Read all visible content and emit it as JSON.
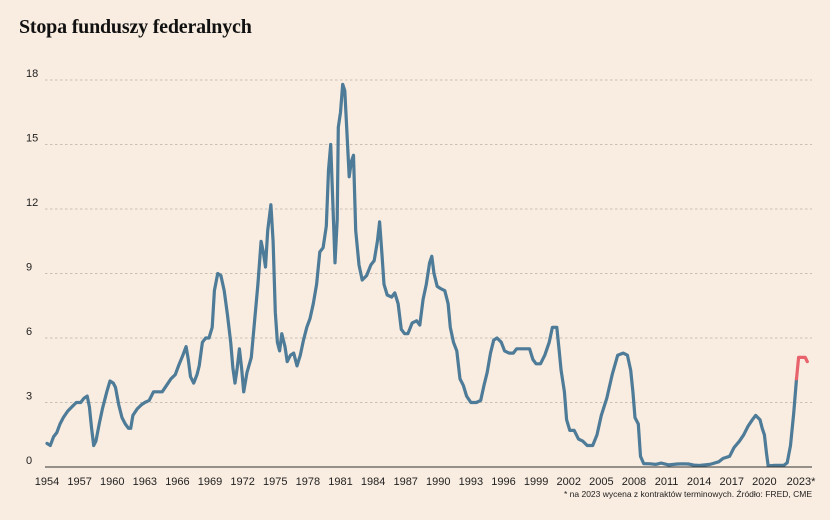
{
  "title": "Stopa funduszy federalnych",
  "footnote": "* na 2023 wycena z kontraktów terminowych. Źródło: FRED, CME",
  "colors": {
    "background": "#f9ece0",
    "historical": "#4d7b98",
    "forecast": "#e8636b",
    "grid": "#b9b0a8",
    "axis": "#333333"
  },
  "chart_data": {
    "type": "line",
    "title": "Stopa funduszy federalnych",
    "xlabel": "",
    "ylabel": "",
    "xlim": [
      1954,
      2024
    ],
    "ylim": [
      0,
      18
    ],
    "y_ticks": [
      0,
      3,
      6,
      9,
      12,
      15,
      18
    ],
    "x_ticks": [
      "1954",
      "1957",
      "1960",
      "1963",
      "1966",
      "1969",
      "1972",
      "1975",
      "1978",
      "1981",
      "1984",
      "1987",
      "1990",
      "1993",
      "1996",
      "1999",
      "2002",
      "2005",
      "2008",
      "2011",
      "2014",
      "2017",
      "2020",
      "2023*"
    ],
    "x_tick_values": [
      1954,
      1957,
      1960,
      1963,
      1966,
      1969,
      1972,
      1975,
      1978,
      1981,
      1984,
      1987,
      1990,
      1993,
      1996,
      1999,
      2002,
      2005,
      2008,
      2011,
      2014,
      2017,
      2020,
      2023
    ],
    "grid": true,
    "series": [
      {
        "role": "historical",
        "points": [
          [
            1954.0,
            1.1
          ],
          [
            1954.3,
            1.0
          ],
          [
            1954.6,
            1.4
          ],
          [
            1954.9,
            1.6
          ],
          [
            1955.2,
            2.0
          ],
          [
            1955.5,
            2.3
          ],
          [
            1955.9,
            2.6
          ],
          [
            1956.3,
            2.8
          ],
          [
            1956.7,
            3.0
          ],
          [
            1957.1,
            3.0
          ],
          [
            1957.4,
            3.2
          ],
          [
            1957.7,
            3.3
          ],
          [
            1957.9,
            2.8
          ],
          [
            1958.1,
            1.8
          ],
          [
            1958.3,
            1.0
          ],
          [
            1958.5,
            1.2
          ],
          [
            1958.8,
            2.0
          ],
          [
            1959.1,
            2.7
          ],
          [
            1959.5,
            3.5
          ],
          [
            1959.8,
            4.0
          ],
          [
            1960.1,
            3.9
          ],
          [
            1960.3,
            3.7
          ],
          [
            1960.6,
            2.9
          ],
          [
            1960.9,
            2.3
          ],
          [
            1961.2,
            2.0
          ],
          [
            1961.5,
            1.8
          ],
          [
            1961.7,
            1.8
          ],
          [
            1961.9,
            2.4
          ],
          [
            1962.3,
            2.7
          ],
          [
            1962.7,
            2.9
          ],
          [
            1963.0,
            3.0
          ],
          [
            1963.4,
            3.1
          ],
          [
            1963.8,
            3.5
          ],
          [
            1964.2,
            3.5
          ],
          [
            1964.6,
            3.5
          ],
          [
            1965.0,
            3.8
          ],
          [
            1965.4,
            4.1
          ],
          [
            1965.8,
            4.3
          ],
          [
            1966.1,
            4.7
          ],
          [
            1966.5,
            5.2
          ],
          [
            1966.8,
            5.6
          ],
          [
            1967.0,
            5.0
          ],
          [
            1967.2,
            4.2
          ],
          [
            1967.5,
            3.9
          ],
          [
            1967.8,
            4.3
          ],
          [
            1968.0,
            4.7
          ],
          [
            1968.3,
            5.8
          ],
          [
            1968.6,
            6.0
          ],
          [
            1968.9,
            6.0
          ],
          [
            1969.2,
            6.5
          ],
          [
            1969.4,
            8.2
          ],
          [
            1969.7,
            9.0
          ],
          [
            1970.0,
            8.9
          ],
          [
            1970.3,
            8.2
          ],
          [
            1970.6,
            7.1
          ],
          [
            1970.9,
            5.8
          ],
          [
            1971.1,
            4.6
          ],
          [
            1971.3,
            3.9
          ],
          [
            1971.5,
            4.6
          ],
          [
            1971.7,
            5.5
          ],
          [
            1971.9,
            4.6
          ],
          [
            1972.1,
            3.5
          ],
          [
            1972.4,
            4.4
          ],
          [
            1972.8,
            5.1
          ],
          [
            1973.1,
            6.8
          ],
          [
            1973.4,
            8.5
          ],
          [
            1973.7,
            10.5
          ],
          [
            1973.9,
            10.0
          ],
          [
            1974.1,
            9.3
          ],
          [
            1974.3,
            11.0
          ],
          [
            1974.6,
            12.2
          ],
          [
            1974.8,
            10.5
          ],
          [
            1975.0,
            7.2
          ],
          [
            1975.2,
            5.8
          ],
          [
            1975.4,
            5.4
          ],
          [
            1975.6,
            6.2
          ],
          [
            1975.9,
            5.6
          ],
          [
            1976.1,
            4.9
          ],
          [
            1976.4,
            5.2
          ],
          [
            1976.7,
            5.3
          ],
          [
            1977.0,
            4.7
          ],
          [
            1977.3,
            5.2
          ],
          [
            1977.6,
            5.9
          ],
          [
            1977.9,
            6.5
          ],
          [
            1978.2,
            6.9
          ],
          [
            1978.5,
            7.6
          ],
          [
            1978.8,
            8.5
          ],
          [
            1979.1,
            10.0
          ],
          [
            1979.4,
            10.2
          ],
          [
            1979.7,
            11.2
          ],
          [
            1979.9,
            13.8
          ],
          [
            1980.1,
            15.0
          ],
          [
            1980.3,
            12.2
          ],
          [
            1980.5,
            9.5
          ],
          [
            1980.7,
            11.5
          ],
          [
            1980.8,
            15.8
          ],
          [
            1981.0,
            16.5
          ],
          [
            1981.2,
            17.8
          ],
          [
            1981.4,
            17.5
          ],
          [
            1981.6,
            15.5
          ],
          [
            1981.8,
            13.5
          ],
          [
            1982.0,
            14.2
          ],
          [
            1982.2,
            14.5
          ],
          [
            1982.4,
            11.0
          ],
          [
            1982.7,
            9.4
          ],
          [
            1983.0,
            8.7
          ],
          [
            1983.4,
            8.9
          ],
          [
            1983.8,
            9.4
          ],
          [
            1984.1,
            9.6
          ],
          [
            1984.4,
            10.5
          ],
          [
            1984.6,
            11.4
          ],
          [
            1984.8,
            10.0
          ],
          [
            1985.0,
            8.5
          ],
          [
            1985.3,
            8.0
          ],
          [
            1985.7,
            7.9
          ],
          [
            1986.0,
            8.1
          ],
          [
            1986.3,
            7.6
          ],
          [
            1986.6,
            6.4
          ],
          [
            1986.9,
            6.2
          ],
          [
            1987.2,
            6.2
          ],
          [
            1987.6,
            6.7
          ],
          [
            1988.0,
            6.8
          ],
          [
            1988.3,
            6.6
          ],
          [
            1988.6,
            7.8
          ],
          [
            1988.9,
            8.5
          ],
          [
            1989.2,
            9.5
          ],
          [
            1989.4,
            9.8
          ],
          [
            1989.6,
            9.0
          ],
          [
            1989.9,
            8.4
          ],
          [
            1990.2,
            8.3
          ],
          [
            1990.6,
            8.2
          ],
          [
            1990.9,
            7.6
          ],
          [
            1991.1,
            6.5
          ],
          [
            1991.4,
            5.8
          ],
          [
            1991.7,
            5.4
          ],
          [
            1992.0,
            4.1
          ],
          [
            1992.3,
            3.8
          ],
          [
            1992.6,
            3.3
          ],
          [
            1993.0,
            3.0
          ],
          [
            1993.5,
            3.0
          ],
          [
            1993.9,
            3.1
          ],
          [
            1994.2,
            3.8
          ],
          [
            1994.5,
            4.4
          ],
          [
            1994.8,
            5.3
          ],
          [
            1995.1,
            5.9
          ],
          [
            1995.4,
            6.0
          ],
          [
            1995.8,
            5.8
          ],
          [
            1996.1,
            5.4
          ],
          [
            1996.5,
            5.3
          ],
          [
            1996.9,
            5.3
          ],
          [
            1997.2,
            5.5
          ],
          [
            1997.6,
            5.5
          ],
          [
            1998.0,
            5.5
          ],
          [
            1998.4,
            5.5
          ],
          [
            1998.7,
            5.0
          ],
          [
            1999.0,
            4.8
          ],
          [
            1999.4,
            4.8
          ],
          [
            1999.8,
            5.2
          ],
          [
            2000.2,
            5.8
          ],
          [
            2000.5,
            6.5
          ],
          [
            2000.9,
            6.5
          ],
          [
            2001.1,
            5.5
          ],
          [
            2001.3,
            4.5
          ],
          [
            2001.6,
            3.5
          ],
          [
            2001.8,
            2.2
          ],
          [
            2002.1,
            1.7
          ],
          [
            2002.5,
            1.7
          ],
          [
            2002.9,
            1.3
          ],
          [
            2003.3,
            1.2
          ],
          [
            2003.7,
            1.0
          ],
          [
            2004.2,
            1.0
          ],
          [
            2004.6,
            1.5
          ],
          [
            2005.0,
            2.4
          ],
          [
            2005.5,
            3.2
          ],
          [
            2006.0,
            4.3
          ],
          [
            2006.5,
            5.2
          ],
          [
            2007.0,
            5.3
          ],
          [
            2007.4,
            5.2
          ],
          [
            2007.7,
            4.5
          ],
          [
            2007.9,
            3.5
          ],
          [
            2008.1,
            2.3
          ],
          [
            2008.4,
            2.0
          ],
          [
            2008.6,
            0.5
          ],
          [
            2008.9,
            0.16
          ],
          [
            2009.5,
            0.15
          ],
          [
            2010.0,
            0.12
          ],
          [
            2010.5,
            0.18
          ],
          [
            2011.2,
            0.1
          ],
          [
            2012.0,
            0.14
          ],
          [
            2012.5,
            0.15
          ],
          [
            2013.0,
            0.14
          ],
          [
            2013.5,
            0.09
          ],
          [
            2014.0,
            0.07
          ],
          [
            2015.0,
            0.12
          ],
          [
            2015.8,
            0.24
          ],
          [
            2016.2,
            0.4
          ],
          [
            2016.8,
            0.5
          ],
          [
            2017.2,
            0.9
          ],
          [
            2017.7,
            1.2
          ],
          [
            2018.1,
            1.5
          ],
          [
            2018.5,
            1.9
          ],
          [
            2018.9,
            2.2
          ],
          [
            2019.2,
            2.4
          ],
          [
            2019.6,
            2.2
          ],
          [
            2019.8,
            1.8
          ],
          [
            2020.0,
            1.5
          ],
          [
            2020.2,
            0.6
          ],
          [
            2020.35,
            0.05
          ],
          [
            2021.0,
            0.08
          ],
          [
            2021.8,
            0.08
          ],
          [
            2022.1,
            0.2
          ],
          [
            2022.4,
            1.0
          ],
          [
            2022.7,
            2.5
          ],
          [
            2022.95,
            4.1
          ]
        ]
      },
      {
        "role": "forecast",
        "points": [
          [
            2022.95,
            4.1
          ],
          [
            2023.15,
            5.1
          ],
          [
            2023.5,
            5.1
          ],
          [
            2023.75,
            5.1
          ],
          [
            2023.95,
            4.9
          ]
        ]
      }
    ]
  }
}
